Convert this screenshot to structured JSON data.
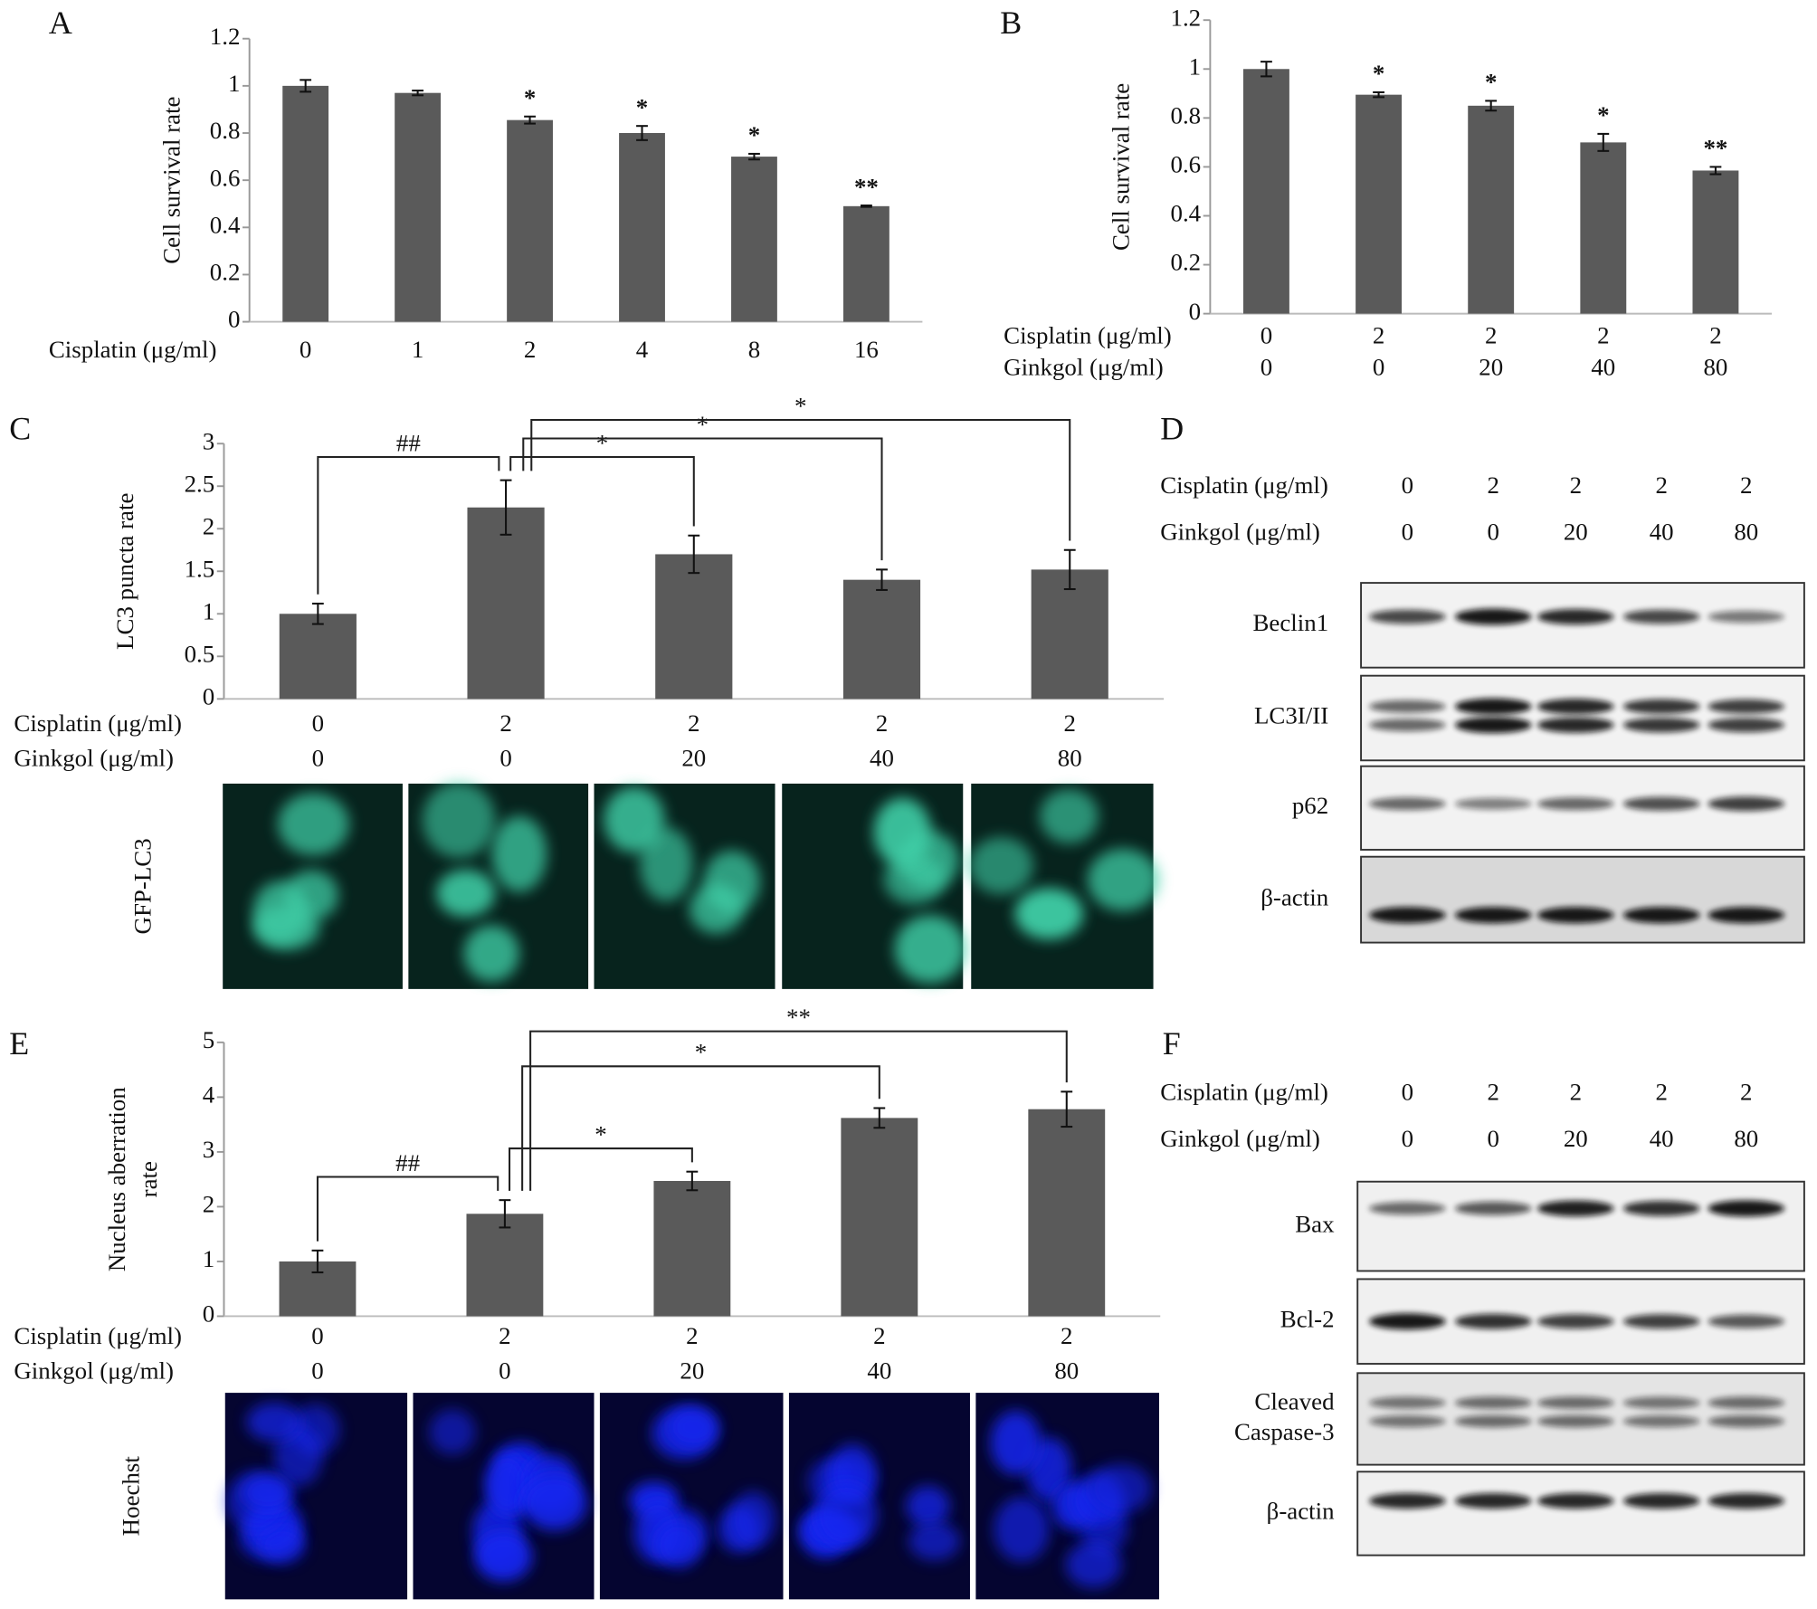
{
  "chart_data": [
    {
      "type": "bar",
      "panel": "A",
      "ylabel": [
        "Cell survival rate"
      ],
      "category_rows": [
        {
          "name": "Cisplatin (μg/ml)",
          "labels": [
            "0",
            "1",
            "2",
            "4",
            "8",
            "16"
          ]
        }
      ],
      "values": [
        1.0,
        0.97,
        0.855,
        0.8,
        0.7,
        0.49
      ],
      "errors": [
        0.025,
        0.01,
        0.015,
        0.03,
        0.012,
        0.003
      ],
      "markers": [
        null,
        null,
        "*",
        "*",
        "*",
        "**"
      ],
      "color": "#5a5a5a",
      "ylim": [
        0,
        1.2
      ],
      "yticks": [
        0,
        0.2,
        0.4,
        0.6,
        0.8,
        1,
        1.2
      ]
    },
    {
      "type": "bar",
      "panel": "B",
      "ylabel": [
        "Cell survival rate"
      ],
      "category_rows": [
        {
          "name": "Cisplatin (μg/ml)",
          "labels": [
            "0",
            "2",
            "2",
            "2",
            "2"
          ]
        },
        {
          "name": "Ginkgol (μg/ml)",
          "labels": [
            "0",
            "0",
            "20",
            "40",
            "80"
          ]
        }
      ],
      "values": [
        1.0,
        0.895,
        0.85,
        0.7,
        0.585
      ],
      "errors": [
        0.03,
        0.01,
        0.02,
        0.035,
        0.015
      ],
      "markers": [
        null,
        "*",
        "*",
        "*",
        "**"
      ],
      "color": "#5a5a5a",
      "ylim": [
        0,
        1.2
      ],
      "yticks": [
        0,
        0.2,
        0.4,
        0.6,
        0.8,
        1,
        1.2
      ]
    },
    {
      "type": "bar",
      "panel": "C",
      "ylabel": [
        "LC3 puncta rate"
      ],
      "category_rows": [
        {
          "name": "Cisplatin (μg/ml)",
          "labels": [
            "0",
            "2",
            "2",
            "2",
            "2"
          ]
        },
        {
          "name": "Ginkgol (μg/ml)",
          "labels": [
            "0",
            "0",
            "20",
            "40",
            "80"
          ]
        }
      ],
      "values": [
        1.0,
        2.25,
        1.7,
        1.4,
        1.52
      ],
      "errors": [
        0.12,
        0.32,
        0.22,
        0.12,
        0.23
      ],
      "comparisons": [
        {
          "from": 0,
          "to": 1,
          "label": "##"
        },
        {
          "from": 1,
          "to": 2,
          "label": "*"
        },
        {
          "from": 1,
          "to": 3,
          "label": "*"
        },
        {
          "from": 1,
          "to": 4,
          "label": "*"
        }
      ],
      "color": "#5a5a5a",
      "ylim": [
        0,
        3
      ],
      "yticks": [
        0,
        0.5,
        1,
        1.5,
        2,
        2.5,
        3
      ]
    },
    {
      "type": "bar",
      "panel": "E",
      "ylabel": [
        "Nucleus aberration",
        "rate"
      ],
      "category_rows": [
        {
          "name": "Cisplatin (μg/ml)",
          "labels": [
            "0",
            "2",
            "2",
            "2",
            "2"
          ]
        },
        {
          "name": "Ginkgol (μg/ml)",
          "labels": [
            "0",
            "0",
            "20",
            "40",
            "80"
          ]
        }
      ],
      "values": [
        1.0,
        1.87,
        2.47,
        3.62,
        3.78
      ],
      "errors": [
        0.2,
        0.25,
        0.17,
        0.18,
        0.32
      ],
      "comparisons": [
        {
          "from": 0,
          "to": 1,
          "label": "##"
        },
        {
          "from": 1,
          "to": 2,
          "label": "*"
        },
        {
          "from": 1,
          "to": 3,
          "label": "*"
        },
        {
          "from": 1,
          "to": 4,
          "label": "**"
        }
      ],
      "color": "#5a5a5a",
      "ylim": [
        0,
        5
      ],
      "yticks": [
        0,
        1,
        2,
        3,
        4,
        5
      ]
    }
  ],
  "blots": [
    {
      "panel": "D",
      "lane_rows": [
        {
          "name": "Cisplatin (μg/ml)",
          "labels": [
            "0",
            "2",
            "2",
            "2",
            "2"
          ]
        },
        {
          "name": "Ginkgol (μg/ml)",
          "labels": [
            "0",
            "0",
            "20",
            "40",
            "80"
          ]
        }
      ],
      "bands": [
        [
          "Beclin1"
        ],
        [
          "LC3I/II"
        ],
        [
          "p62"
        ],
        [
          "β-actin"
        ]
      ]
    },
    {
      "panel": "F",
      "lane_rows": [
        {
          "name": "Cisplatin (μg/ml)",
          "labels": [
            "0",
            "2",
            "2",
            "2",
            "2"
          ]
        },
        {
          "name": "Ginkgol (μg/ml)",
          "labels": [
            "0",
            "0",
            "20",
            "40",
            "80"
          ]
        }
      ],
      "bands": [
        [
          "Bax"
        ],
        [
          "Bcl-2"
        ],
        [
          "Cleaved",
          "Caspase-3"
        ],
        [
          "β-actin"
        ]
      ]
    }
  ],
  "images": [
    {
      "label": "GFP-LC3"
    },
    {
      "label": "Hoechst"
    }
  ]
}
